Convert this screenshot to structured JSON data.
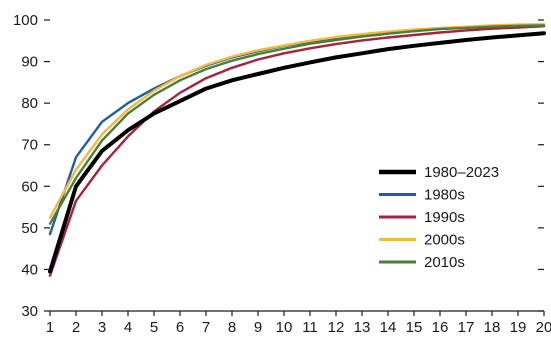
{
  "chart_data": {
    "type": "line",
    "x": [
      1,
      2,
      3,
      4,
      5,
      6,
      7,
      8,
      9,
      10,
      11,
      12,
      13,
      14,
      15,
      16,
      17,
      18,
      19,
      20
    ],
    "ylim": [
      30,
      100
    ],
    "yticks": [
      30,
      40,
      50,
      60,
      70,
      80,
      90,
      100
    ],
    "xticks": [
      1,
      2,
      3,
      4,
      5,
      6,
      7,
      8,
      9,
      10,
      11,
      12,
      13,
      14,
      15,
      16,
      17,
      18,
      19,
      20
    ],
    "grid": false,
    "legend_position": "right",
    "series": [
      {
        "name": "1980–2023",
        "color": "#000000",
        "emphasis": true,
        "values": [
          39.5,
          60,
          68.5,
          73.5,
          77.5,
          80.5,
          83.5,
          85.5,
          87,
          88.5,
          89.8,
          91,
          92,
          93,
          93.8,
          94.5,
          95.2,
          95.8,
          96.3,
          96.8
        ]
      },
      {
        "name": "1980s",
        "color": "#1f5f99",
        "values": [
          48.5,
          67,
          75.5,
          80,
          83.5,
          86.5,
          89,
          91,
          92.5,
          93.8,
          94.8,
          95.7,
          96.4,
          97,
          97.5,
          97.9,
          98.2,
          98.5,
          98.7,
          98.8
        ]
      },
      {
        "name": "1990s",
        "color": "#a3243b",
        "values": [
          38.5,
          56.5,
          65,
          72,
          78,
          82.5,
          86,
          88.5,
          90.5,
          92,
          93.2,
          94.2,
          95.1,
          95.8,
          96.4,
          97,
          97.5,
          97.9,
          98.2,
          98.5
        ]
      },
      {
        "name": "2000s",
        "color": "#f5b841",
        "values": [
          52.5,
          64,
          72.5,
          78.5,
          83,
          86.5,
          89.2,
          91.2,
          92.7,
          93.9,
          95,
          95.9,
          96.6,
          97.2,
          97.7,
          98.1,
          98.4,
          98.7,
          98.9,
          99
        ]
      },
      {
        "name": "2010s",
        "color": "#4a7f3a",
        "values": [
          51,
          62,
          71,
          77.5,
          82,
          85.5,
          88.2,
          90.2,
          91.8,
          93.1,
          94.3,
          95.2,
          96,
          96.7,
          97.3,
          97.8,
          98.1,
          98.4,
          98.6,
          98.7
        ]
      }
    ]
  }
}
